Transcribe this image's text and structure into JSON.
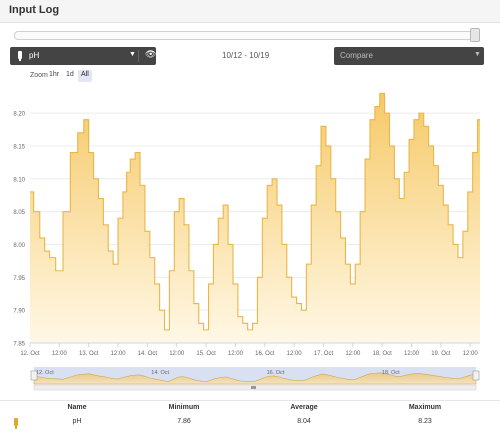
{
  "header": {
    "title": "Input Log"
  },
  "controls": {
    "sensor_select": {
      "value": "pH",
      "icon": "probe-icon"
    },
    "visibility_icon": "eye-icon",
    "date_range": "10/12 - 10/19",
    "compare_select": {
      "placeholder": "Compare"
    }
  },
  "zoom": {
    "label": "Zoom",
    "options": [
      "1hr",
      "1d",
      "All"
    ],
    "selected": "All"
  },
  "chart_data": {
    "type": "area",
    "title": "",
    "xlabel": "",
    "ylabel": "",
    "ylim": [
      7.85,
      8.22
    ],
    "yticks": [
      "7.85",
      "7.90",
      "7.95",
      "8.00",
      "8.05",
      "8.10",
      "8.15",
      "8.20"
    ],
    "xticks": [
      "12. Oct",
      "12:00",
      "13. Oct",
      "12:00",
      "14. Oct",
      "12:00",
      "15. Oct",
      "12:00",
      "16. Oct",
      "12:00",
      "17. Oct",
      "12:00",
      "18. Oct",
      "12:00",
      "19. Oct",
      "12:00"
    ],
    "x_hours": [
      0,
      3,
      5,
      7,
      9,
      12,
      15,
      18,
      21,
      23,
      25,
      27,
      29,
      31,
      33,
      35,
      37,
      39,
      40,
      42,
      44,
      46,
      48,
      50,
      52,
      54,
      56,
      58,
      60,
      62,
      64,
      66,
      68,
      70,
      72,
      74,
      76,
      78,
      80,
      82,
      84,
      86,
      88,
      90,
      92,
      94,
      96,
      98,
      100,
      102,
      104,
      106,
      108,
      110,
      112,
      114,
      116,
      118,
      120,
      122,
      124,
      126,
      128,
      130,
      132,
      134,
      136,
      138,
      140,
      142,
      144,
      146,
      148,
      150,
      152,
      154,
      156,
      158,
      160,
      162,
      164,
      166,
      168,
      170,
      172,
      174,
      176,
      178,
      180,
      182,
      184
    ],
    "values": [
      8.08,
      8.05,
      8.01,
      7.99,
      7.98,
      7.96,
      8.05,
      8.14,
      8.17,
      8.19,
      8.14,
      8.1,
      8.07,
      8.03,
      7.99,
      7.97,
      8.04,
      8.08,
      8.11,
      8.13,
      8.14,
      8.09,
      8.02,
      7.98,
      7.94,
      7.9,
      7.87,
      7.96,
      8.05,
      8.07,
      8.03,
      7.96,
      7.91,
      7.88,
      7.87,
      7.94,
      8.0,
      8.04,
      8.06,
      8.0,
      7.94,
      7.89,
      7.88,
      7.87,
      7.88,
      7.95,
      8.04,
      8.09,
      8.1,
      8.06,
      8.0,
      7.95,
      7.92,
      7.91,
      7.9,
      7.97,
      8.06,
      8.12,
      8.18,
      8.15,
      8.1,
      8.05,
      8.01,
      7.97,
      7.94,
      7.97,
      8.05,
      8.13,
      8.19,
      8.21,
      8.23,
      8.2,
      8.15,
      8.1,
      8.07,
      8.11,
      8.16,
      8.19,
      8.2,
      8.18,
      8.15,
      8.12,
      8.09,
      8.06,
      8.03,
      8.0,
      7.98,
      8.02,
      8.08,
      8.14,
      8.19
    ],
    "grid": true,
    "legend": "none",
    "navigator_labels": [
      "12. Oct",
      "14. Oct",
      "16. Oct",
      "18. Oct"
    ],
    "colors": {
      "line": "#e9b748",
      "fill_top": "#f6c967",
      "fill_bottom": "#fff8e6",
      "navigator": "#cbd5ee"
    }
  },
  "table": {
    "headers": [
      "Name",
      "Minimum",
      "Average",
      "Maximum"
    ],
    "rows": [
      {
        "name": "pH",
        "min": "7.86",
        "avg": "8.04",
        "max": "8.23",
        "icon": "probe-icon"
      }
    ]
  }
}
